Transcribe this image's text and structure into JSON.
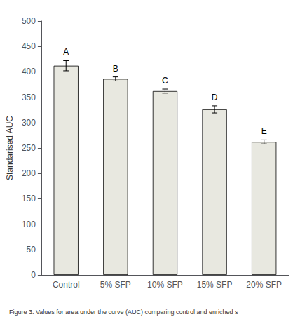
{
  "chart_data": {
    "type": "bar",
    "title": "Figure 3. Values for area under the curve (AUC) comparing control and enriched s",
    "ylabel": "Standarised AUC",
    "categories": [
      "Control",
      "5% SFP",
      "10% SFP",
      "15% SFP",
      "20% SFP"
    ],
    "values": [
      412,
      386,
      362,
      326,
      262
    ],
    "errors": [
      10,
      4,
      4,
      7,
      4
    ],
    "annotations": [
      "A",
      "B",
      "C",
      "D",
      "E"
    ],
    "color": "#e8e8e0",
    "ylim": [
      0,
      500
    ],
    "yticks": [
      0,
      50,
      100,
      150,
      200,
      250,
      300,
      350,
      400,
      450,
      500
    ],
    "grid": false
  }
}
